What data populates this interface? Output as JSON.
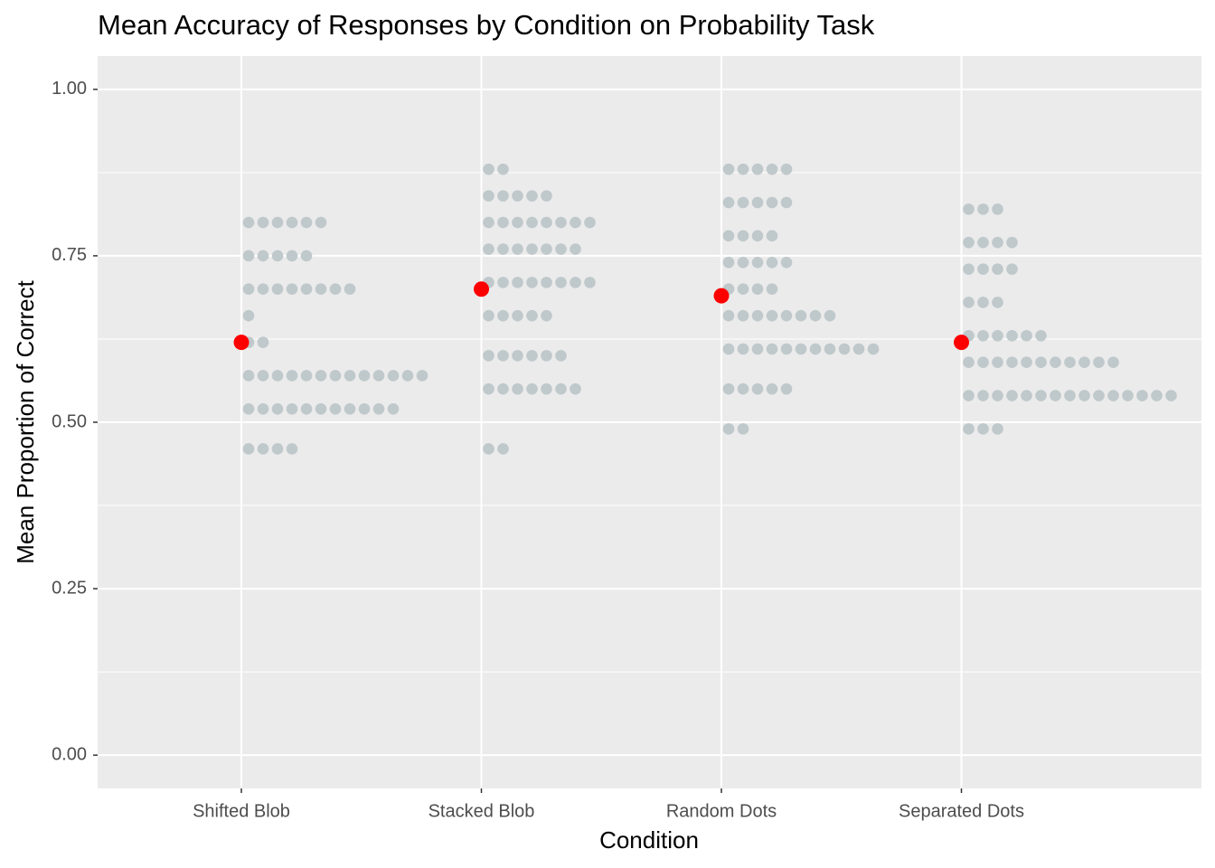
{
  "chart_data": {
    "type": "dotplot",
    "title": "Mean Accuracy of Responses by Condition on Probability Task",
    "x_label": "Condition",
    "y_label": "Mean Proportion of Correct",
    "categories": [
      "Shifted Blob",
      "Stacked Blob",
      "Random Dots",
      "Separated Dots"
    ],
    "dots": [
      {
        "values": [
          0.8,
          0.75,
          0.7,
          0.66,
          0.62,
          0.57,
          0.52,
          0.46
        ],
        "counts": [
          6,
          5,
          8,
          1,
          2,
          13,
          11,
          4
        ]
      },
      {
        "values": [
          0.88,
          0.84,
          0.8,
          0.76,
          0.71,
          0.66,
          0.6,
          0.55,
          0.46
        ],
        "counts": [
          2,
          5,
          8,
          7,
          8,
          5,
          6,
          7,
          2
        ]
      },
      {
        "values": [
          0.88,
          0.83,
          0.78,
          0.74,
          0.7,
          0.66,
          0.61,
          0.55,
          0.49
        ],
        "counts": [
          5,
          5,
          4,
          5,
          4,
          8,
          11,
          5,
          2
        ]
      },
      {
        "values": [
          0.82,
          0.77,
          0.73,
          0.68,
          0.63,
          0.59,
          0.54,
          0.49
        ],
        "counts": [
          3,
          4,
          4,
          3,
          6,
          11,
          15,
          3
        ]
      }
    ],
    "means": [
      0.62,
      0.7,
      0.69,
      0.62
    ],
    "dot_color": "#bfc8cb",
    "mean_color": "#ff0000",
    "ylim": [
      -0.05,
      1.05
    ],
    "yticks": [
      {
        "value": 0,
        "label": "0.00"
      },
      {
        "value": 0.25,
        "label": "0.25"
      },
      {
        "value": 0.5,
        "label": "0.50"
      },
      {
        "value": 0.75,
        "label": "0.75"
      },
      {
        "value": 1,
        "label": "1.00"
      }
    ],
    "minor_yticks": [
      0.125,
      0.375,
      0.625,
      0.875
    ],
    "grid": true
  }
}
